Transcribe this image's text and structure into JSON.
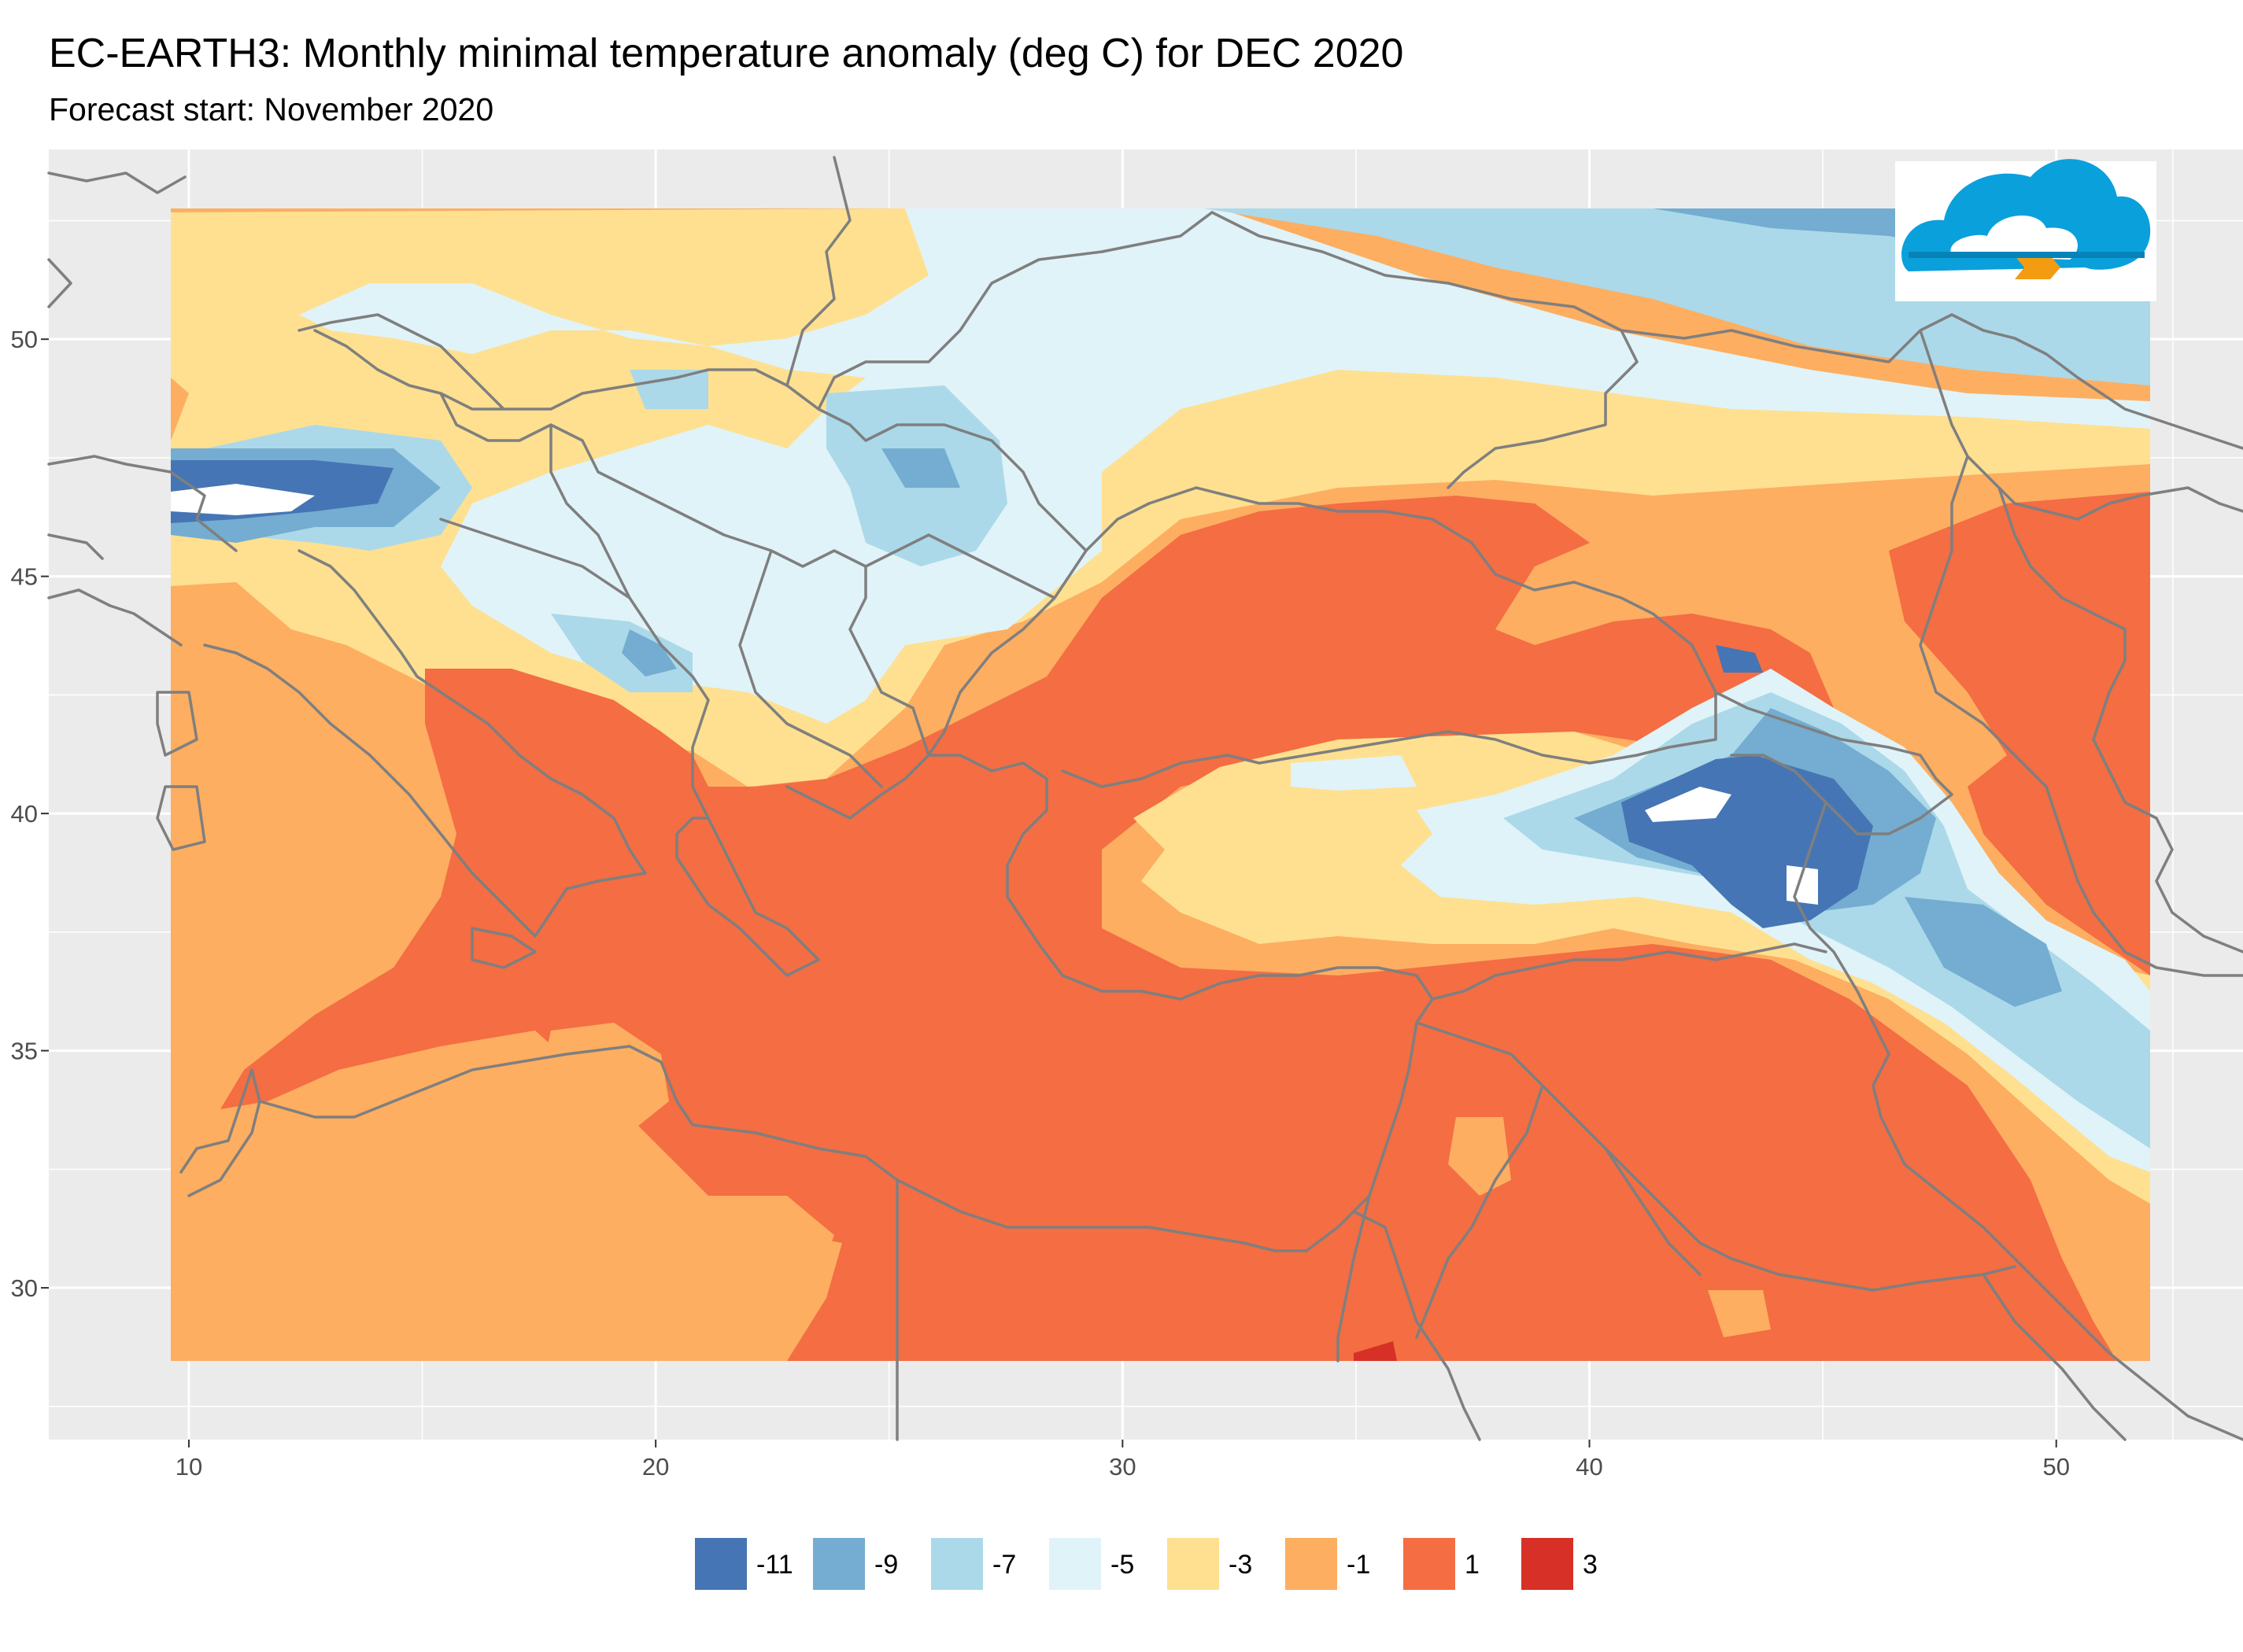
{
  "title": "EC-EARTH3: Monthly minimal temperature anomaly (deg C) for DEC 2020",
  "subtitle": "Forecast start: November 2020",
  "colors": {
    "panel_bg": "#ebebeb",
    "grid": "#ffffff",
    "border": "#7f7f7f",
    "no_data": "#ffffff"
  },
  "map": {
    "lon_range": [
      7,
      54
    ],
    "lat_range": [
      26.8,
      54
    ],
    "data_extent": {
      "lon": [
        9.5,
        51.6
      ],
      "lat": [
        28.5,
        52.9
      ]
    },
    "x_ticks": [
      10,
      20,
      30,
      40,
      50
    ],
    "y_ticks": [
      30,
      35,
      40,
      45,
      50
    ],
    "x_tick_labels": [
      "10",
      "20",
      "30",
      "40",
      "50"
    ],
    "y_tick_labels": [
      "30",
      "35",
      "40",
      "45",
      "50"
    ]
  },
  "legend": [
    {
      "label": "-11",
      "color": "#4575b4"
    },
    {
      "label": "-9",
      "color": "#74add1"
    },
    {
      "label": "-7",
      "color": "#abd9e9"
    },
    {
      "label": "-5",
      "color": "#e0f3f8"
    },
    {
      "label": "-3",
      "color": "#fee090"
    },
    {
      "label": "-1",
      "color": "#fdae61"
    },
    {
      "label": "1",
      "color": "#f46d43"
    },
    {
      "label": "3",
      "color": "#d73027"
    }
  ],
  "logo": {
    "icon": "cloud-logo-icon",
    "colors": [
      "#0aa0dc",
      "#f39c12"
    ]
  }
}
